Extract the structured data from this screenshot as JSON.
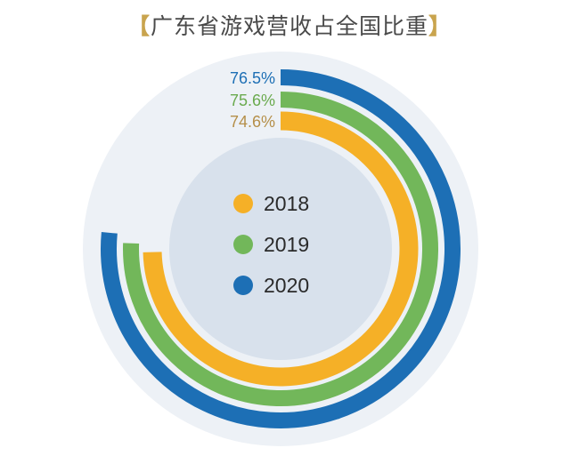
{
  "chart_data": {
    "type": "radial-bar",
    "title": "广东省游戏营收占全国比重",
    "title_open_bracket": "【",
    "title_close_bracket": "】",
    "unit": "%",
    "series": [
      {
        "name": "2018",
        "value": 74.6,
        "label": "74.6%",
        "color": "#f5b027"
      },
      {
        "name": "2019",
        "value": 75.6,
        "label": "75.6%",
        "color": "#72b75a"
      },
      {
        "name": "2020",
        "value": 76.5,
        "label": "76.5%",
        "color": "#1d6fb5"
      }
    ],
    "legend_placement": "center"
  },
  "colors": {
    "center_disc": "#d8e1ec",
    "outer_halo": "#edf1f6",
    "bracket": "#c9a44e",
    "label_2018": "#b58f49",
    "label_2019": "#6aaa4e",
    "label_2020": "#1d6fb5"
  }
}
